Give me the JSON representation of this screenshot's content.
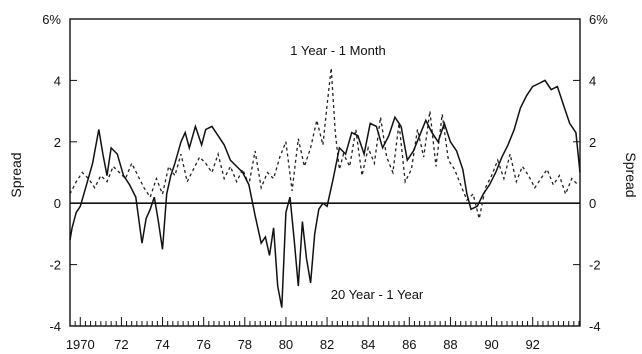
{
  "chart_data": {
    "type": "line",
    "title": "",
    "xlabel": "",
    "ylabel_left": "Spread",
    "ylabel_right": "Spread",
    "xlim": [
      1969.5,
      1994.3
    ],
    "ylim": [
      -4,
      6
    ],
    "x_tick_values": [
      1970,
      1972,
      1974,
      1976,
      1978,
      1980,
      1982,
      1984,
      1986,
      1988,
      1990,
      1992
    ],
    "x_tick_labels": [
      "1970",
      "72",
      "74",
      "76",
      "78",
      "80",
      "82",
      "84",
      "86",
      "88",
      "90",
      "92"
    ],
    "y_tick_values": [
      -4,
      -2,
      0,
      2,
      4,
      6
    ],
    "y_tick_labels_left": [
      "-4",
      "-2",
      "0",
      "2",
      "4",
      "6%"
    ],
    "y_tick_labels_right": [
      "-4",
      "-2",
      "0",
      "2",
      "4",
      "6%"
    ],
    "zero_line": 0,
    "grid": false,
    "annotations": [
      {
        "text": "1 Year - 1 Month",
        "series": "1 Year - 1 Month"
      },
      {
        "text": "20 Year - 1 Year",
        "series": "20 Year - 1 Year"
      }
    ],
    "series": [
      {
        "name": "20 Year - 1 Year",
        "style": "solid",
        "x": [
          1969.5,
          1969.6,
          1969.8,
          1970.0,
          1970.3,
          1970.6,
          1970.9,
          1971.1,
          1971.3,
          1971.5,
          1971.8,
          1972.1,
          1972.4,
          1972.7,
          1973.0,
          1973.2,
          1973.4,
          1973.6,
          1973.8,
          1974.0,
          1974.2,
          1974.4,
          1974.6,
          1974.9,
          1975.1,
          1975.3,
          1975.6,
          1975.9,
          1976.1,
          1976.4,
          1976.7,
          1977.0,
          1977.3,
          1977.6,
          1977.9,
          1978.2,
          1978.5,
          1978.8,
          1979.0,
          1979.2,
          1979.4,
          1979.6,
          1979.8,
          1980.0,
          1980.2,
          1980.4,
          1980.6,
          1980.8,
          1981.0,
          1981.2,
          1981.4,
          1981.6,
          1981.8,
          1982.0,
          1982.3,
          1982.6,
          1982.9,
          1983.2,
          1983.5,
          1983.8,
          1984.1,
          1984.4,
          1984.7,
          1985.0,
          1985.3,
          1985.6,
          1985.9,
          1986.2,
          1986.5,
          1986.8,
          1987.1,
          1987.4,
          1987.7,
          1988.0,
          1988.3,
          1988.6,
          1988.8,
          1989.0,
          1989.3,
          1989.6,
          1989.9,
          1990.2,
          1990.5,
          1990.8,
          1991.1,
          1991.4,
          1991.7,
          1992.0,
          1992.3,
          1992.6,
          1992.9,
          1993.2,
          1993.5,
          1993.8,
          1994.1,
          1994.3
        ],
        "y": [
          -1.2,
          -0.8,
          -0.3,
          -0.1,
          0.6,
          1.3,
          2.4,
          1.6,
          0.9,
          1.8,
          1.6,
          0.9,
          0.6,
          0.2,
          -1.3,
          -0.5,
          -0.2,
          0.2,
          -0.6,
          -1.5,
          0.3,
          0.9,
          1.3,
          2.0,
          2.3,
          1.8,
          2.5,
          1.9,
          2.4,
          2.5,
          2.2,
          1.9,
          1.4,
          1.2,
          1.0,
          0.6,
          -0.4,
          -1.3,
          -1.1,
          -1.7,
          -0.8,
          -2.7,
          -3.4,
          -0.3,
          0.2,
          -1.2,
          -2.7,
          -0.6,
          -1.8,
          -2.6,
          -1.0,
          -0.2,
          0.0,
          -0.1,
          0.8,
          1.8,
          1.6,
          2.3,
          2.2,
          1.6,
          2.6,
          2.5,
          1.8,
          2.2,
          2.8,
          2.5,
          1.4,
          1.7,
          2.2,
          2.7,
          2.3,
          2.0,
          2.6,
          2.0,
          1.7,
          1.1,
          0.3,
          -0.2,
          -0.1,
          0.3,
          0.6,
          1.0,
          1.5,
          1.9,
          2.4,
          3.1,
          3.5,
          3.8,
          3.9,
          4.0,
          3.7,
          3.8,
          3.2,
          2.6,
          2.3,
          1.0
        ]
      },
      {
        "name": "1 Year - 1 Month",
        "style": "dashed",
        "x": [
          1969.5,
          1969.8,
          1970.1,
          1970.4,
          1970.7,
          1971.0,
          1971.3,
          1971.6,
          1971.9,
          1972.2,
          1972.5,
          1972.8,
          1973.1,
          1973.4,
          1973.7,
          1974.0,
          1974.3,
          1974.6,
          1974.9,
          1975.2,
          1975.5,
          1975.8,
          1976.1,
          1976.4,
          1976.7,
          1977.0,
          1977.3,
          1977.6,
          1977.9,
          1978.2,
          1978.5,
          1978.8,
          1979.1,
          1979.4,
          1979.7,
          1980.0,
          1980.3,
          1980.6,
          1980.9,
          1981.2,
          1981.5,
          1981.8,
          1982.0,
          1982.2,
          1982.4,
          1982.6,
          1982.8,
          1983.1,
          1983.4,
          1983.7,
          1984.0,
          1984.3,
          1984.6,
          1984.9,
          1985.2,
          1985.5,
          1985.8,
          1986.1,
          1986.4,
          1986.7,
          1987.0,
          1987.3,
          1987.6,
          1987.9,
          1988.2,
          1988.5,
          1988.8,
          1989.1,
          1989.4,
          1989.7,
          1990.0,
          1990.3,
          1990.6,
          1990.9,
          1991.2,
          1991.5,
          1991.8,
          1992.1,
          1992.4,
          1992.7,
          1993.0,
          1993.3,
          1993.6,
          1993.9,
          1994.2
        ],
        "y": [
          0.3,
          0.7,
          1.0,
          0.8,
          0.5,
          0.9,
          0.7,
          1.2,
          1.0,
          0.8,
          1.3,
          0.9,
          0.5,
          0.2,
          0.8,
          0.3,
          1.2,
          0.9,
          1.6,
          0.7,
          1.1,
          1.5,
          1.3,
          1.0,
          1.6,
          0.8,
          1.2,
          0.7,
          1.1,
          0.6,
          1.7,
          0.5,
          1.0,
          0.8,
          1.5,
          2.0,
          0.4,
          2.1,
          1.2,
          1.8,
          2.7,
          1.9,
          3.2,
          4.4,
          2.3,
          1.1,
          1.6,
          1.2,
          2.4,
          0.9,
          1.8,
          1.3,
          2.8,
          1.5,
          1.0,
          2.6,
          0.7,
          1.1,
          2.4,
          1.5,
          3.0,
          1.2,
          2.9,
          1.4,
          1.1,
          0.6,
          0.1,
          0.3,
          -0.5,
          0.5,
          0.9,
          1.4,
          0.8,
          1.6,
          0.7,
          1.2,
          0.9,
          0.5,
          0.8,
          1.1,
          0.6,
          0.9,
          0.3,
          0.8,
          0.6
        ]
      }
    ]
  }
}
